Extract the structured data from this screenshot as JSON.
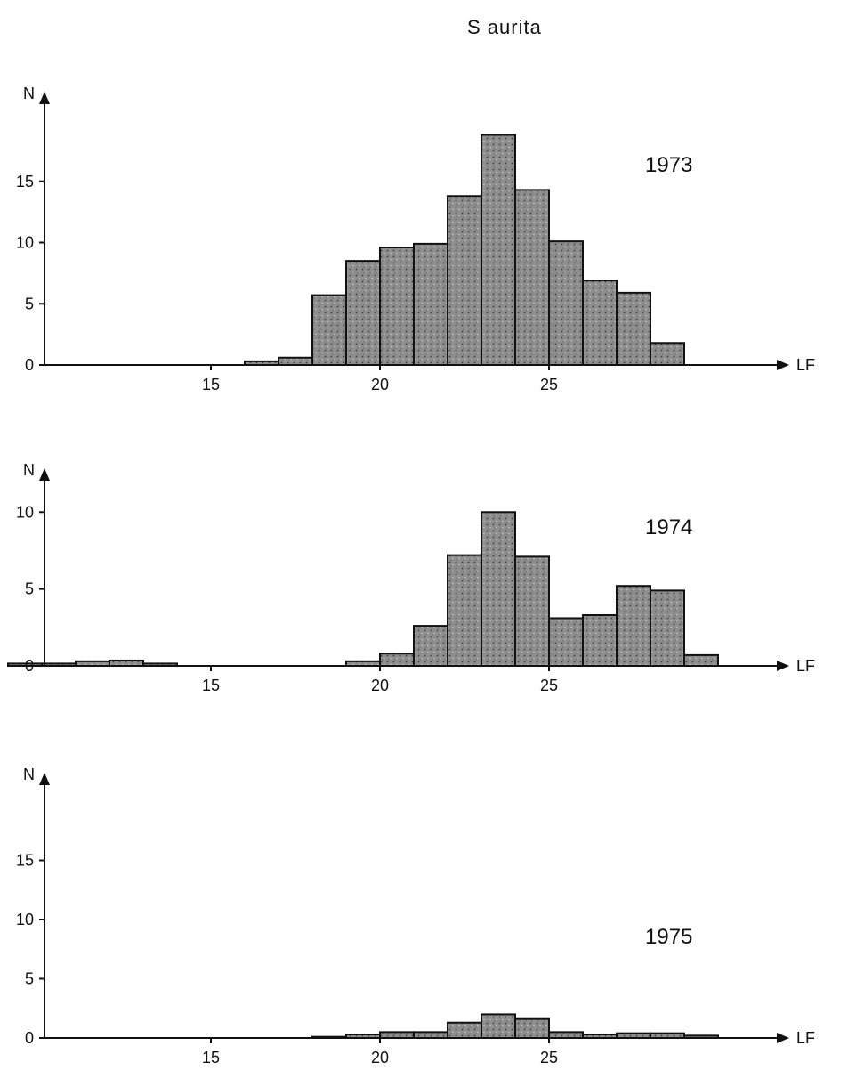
{
  "title": "S  aurita",
  "chart_data": [
    {
      "type": "bar",
      "title": "1973",
      "xlabel": "LF",
      "ylabel": "N",
      "xlim": [
        9,
        34
      ],
      "ylim": [
        0,
        20
      ],
      "xticks": [
        15,
        20,
        25
      ],
      "yticks": [
        0,
        5,
        10,
        15
      ],
      "bin_width": 1,
      "x": [
        16,
        17,
        18,
        19,
        20,
        21,
        22,
        23,
        24,
        25,
        26,
        27,
        28
      ],
      "values": [
        0.3,
        0.6,
        5.7,
        8.5,
        9.6,
        9.9,
        13.8,
        18.8,
        14.3,
        10.1,
        6.9,
        5.9,
        1.8
      ]
    },
    {
      "type": "bar",
      "title": "1974",
      "xlabel": "LF",
      "ylabel": "N",
      "xlim": [
        9,
        34
      ],
      "ylim": [
        0,
        11
      ],
      "xticks": [
        15,
        20,
        25
      ],
      "yticks": [
        0,
        5,
        10
      ],
      "bin_width": 1,
      "x": [
        9,
        10,
        11,
        12,
        13,
        19,
        20,
        21,
        22,
        23,
        24,
        25,
        26,
        27,
        28,
        29
      ],
      "values": [
        0.15,
        0.15,
        0.3,
        0.35,
        0.15,
        0.3,
        0.8,
        2.6,
        7.2,
        10,
        7.1,
        3.1,
        3.3,
        5.2,
        4.9,
        0.7
      ]
    },
    {
      "type": "bar",
      "title": "1975",
      "xlabel": "LF",
      "ylabel": "N",
      "xlim": [
        9,
        34
      ],
      "ylim": [
        0,
        20
      ],
      "xticks": [
        15,
        20,
        25
      ],
      "yticks": [
        0,
        5,
        10,
        15
      ],
      "bin_width": 1,
      "x": [
        18,
        19,
        20,
        21,
        22,
        23,
        24,
        25,
        26,
        27,
        28,
        29
      ],
      "values": [
        0.1,
        0.3,
        0.5,
        0.5,
        1.3,
        2.0,
        1.6,
        0.5,
        0.3,
        0.4,
        0.4,
        0.2
      ]
    }
  ],
  "colors": {
    "bar_fill": "#8e8e8e",
    "bar_stroke": "#111111",
    "axis": "#111111"
  }
}
